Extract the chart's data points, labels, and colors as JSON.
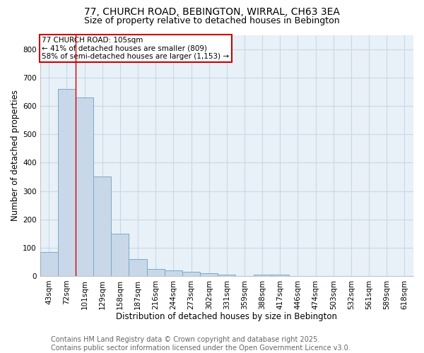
{
  "title_line1": "77, CHURCH ROAD, BEBINGTON, WIRRAL, CH63 3EA",
  "title_line2": "Size of property relative to detached houses in Bebington",
  "xlabel": "Distribution of detached houses by size in Bebington",
  "ylabel": "Number of detached properties",
  "footer_line1": "Contains HM Land Registry data © Crown copyright and database right 2025.",
  "footer_line2": "Contains public sector information licensed under the Open Government Licence v3.0.",
  "annotation_line1": "77 CHURCH ROAD: 105sqm",
  "annotation_line2": "← 41% of detached houses are smaller (809)",
  "annotation_line3": "58% of semi-detached houses are larger (1,153) →",
  "bar_labels": [
    "43sqm",
    "72sqm",
    "101sqm",
    "129sqm",
    "158sqm",
    "187sqm",
    "216sqm",
    "244sqm",
    "273sqm",
    "302sqm",
    "331sqm",
    "359sqm",
    "388sqm",
    "417sqm",
    "446sqm",
    "474sqm",
    "503sqm",
    "532sqm",
    "561sqm",
    "589sqm",
    "618sqm"
  ],
  "bar_heights": [
    85,
    660,
    630,
    350,
    150,
    60,
    25,
    20,
    15,
    10,
    5,
    0,
    5,
    5,
    0,
    0,
    0,
    0,
    0,
    0,
    0
  ],
  "bar_color": "#c8d8e8",
  "bar_edge_color": "#7aaac8",
  "vline_x_index": 2,
  "vline_color": "#cc0000",
  "annotation_box_edge_color": "#cc0000",
  "ylim": [
    0,
    850
  ],
  "yticks": [
    0,
    100,
    200,
    300,
    400,
    500,
    600,
    700,
    800
  ],
  "grid_color": "#c8d8e8",
  "bg_color": "#e8f0f8",
  "title_fontsize": 10,
  "subtitle_fontsize": 9,
  "axis_label_fontsize": 8.5,
  "tick_fontsize": 7.5,
  "annotation_fontsize": 7.5,
  "footer_fontsize": 7
}
